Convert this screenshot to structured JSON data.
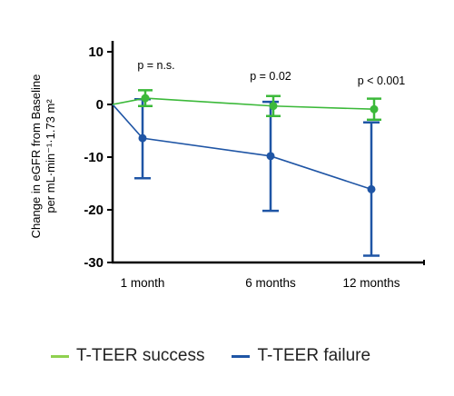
{
  "chart_data": {
    "type": "line",
    "title": "",
    "ylabel_line1": "Change in eGFR from Baseline",
    "ylabel_line2": "per mL·min⁻¹·1.73 m²",
    "ylim": [
      -30,
      14
    ],
    "yticks": [
      10,
      0,
      -10,
      -20,
      -30
    ],
    "ytick_labels": [
      "10",
      "0",
      "-10",
      "-20",
      "-30"
    ],
    "categories": [
      "1 month",
      "6 months",
      "12 months"
    ],
    "series": [
      {
        "name": "T-TEER success",
        "color": "#3cb93a",
        "start": 0,
        "values": [
          1.2,
          -0.3,
          -0.9
        ],
        "err_low": [
          -0.3,
          -2.2,
          -2.9
        ],
        "err_high": [
          2.7,
          1.6,
          1.1
        ]
      },
      {
        "name": "T-TEER failure",
        "color": "#1f55a5",
        "start": 0,
        "values": [
          -6.4,
          -9.8,
          -16.1
        ],
        "err_low": [
          -14.0,
          -20.2,
          -28.7
        ],
        "err_high": [
          1.0,
          0.5,
          -3.4
        ]
      }
    ],
    "annotations": [
      "p = n.s.",
      "p = 0.02",
      "p < 0.001"
    ],
    "legend_position": "bottom"
  }
}
